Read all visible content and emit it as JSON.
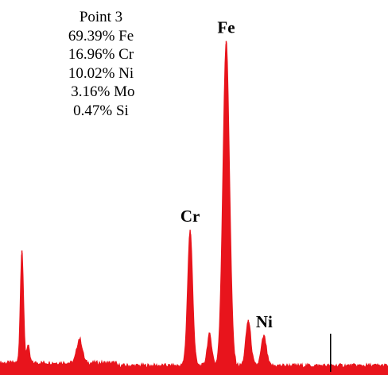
{
  "composition_box": {
    "title": "Point 3",
    "lines": [
      "69.39% Fe",
      "16.96% Cr",
      "10.02% Ni",
      " 3.16% Mo",
      "0.47% Si"
    ]
  },
  "chart_data": {
    "type": "area",
    "title": "",
    "xlabel": "",
    "ylabel": "",
    "color": "#e8141c",
    "peaks": [
      {
        "label": "",
        "center": 0.0565,
        "height": 0.33,
        "width": 0.004
      },
      {
        "label": "",
        "center": 0.072,
        "height": 0.05,
        "width": 0.004
      },
      {
        "label": "",
        "center": 0.205,
        "height": 0.07,
        "width": 0.007
      },
      {
        "label": "Cr",
        "center": 0.49,
        "height": 0.39,
        "width": 0.0065
      },
      {
        "label": "",
        "center": 0.54,
        "height": 0.09,
        "width": 0.006
      },
      {
        "label": "Fe",
        "center": 0.583,
        "height": 0.935,
        "width": 0.0085
      },
      {
        "label": "",
        "center": 0.64,
        "height": 0.13,
        "width": 0.0065
      },
      {
        "label": "Ni",
        "center": 0.68,
        "height": 0.085,
        "width": 0.0065
      }
    ],
    "marker_line": {
      "position": 0.852,
      "height": 0.11
    }
  }
}
